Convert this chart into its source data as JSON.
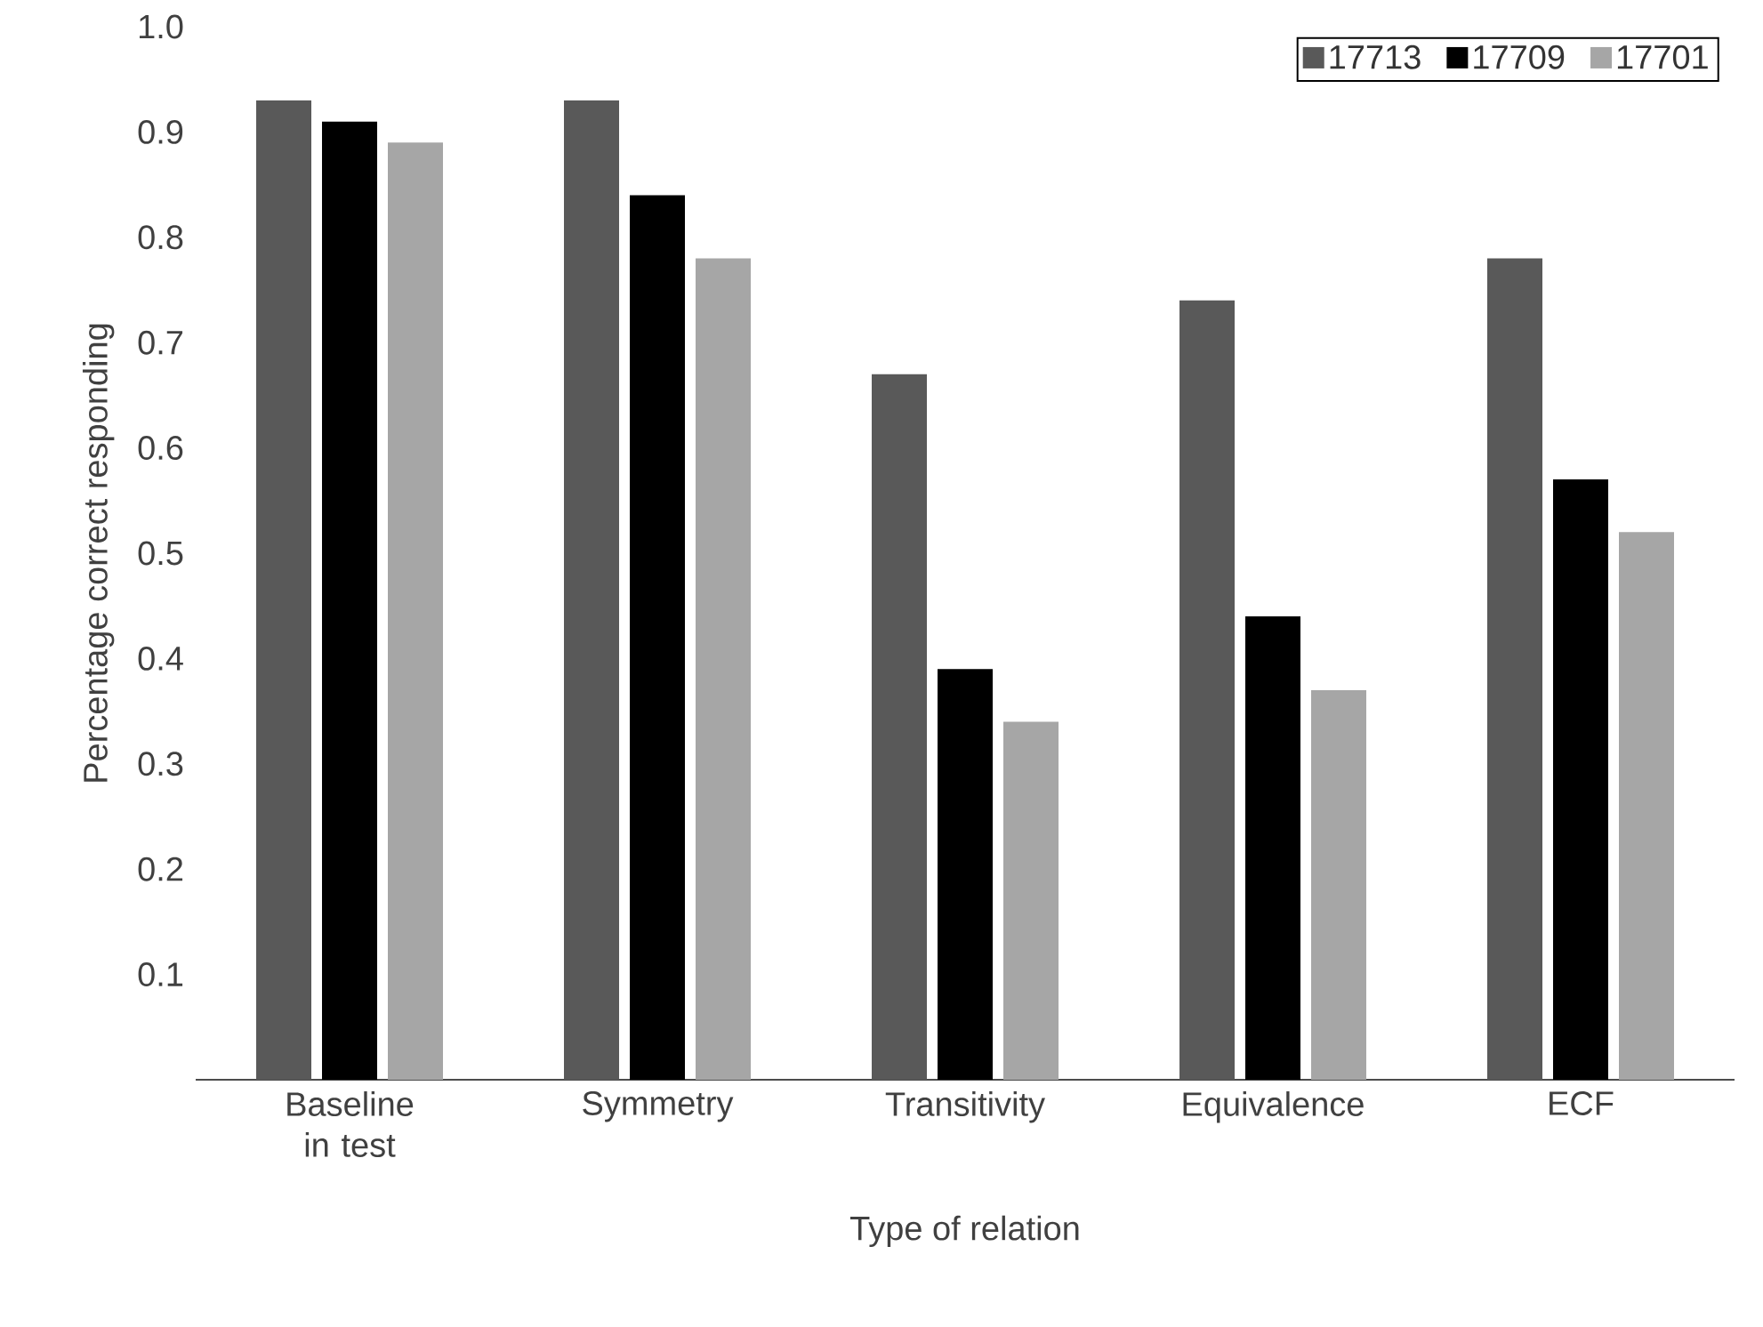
{
  "chart_data": {
    "type": "bar",
    "xlabel": "Type of relation",
    "ylabel": "Percentage correct responding",
    "categories": [
      "Baseline in test",
      "Symmetry",
      "Transitivity",
      "Equivalence",
      "ECF"
    ],
    "series": [
      {
        "name": "17713",
        "color": "#595959",
        "values": [
          0.93,
          0.93,
          0.67,
          0.74,
          0.78
        ]
      },
      {
        "name": "17709",
        "color": "#000000",
        "values": [
          0.91,
          0.84,
          0.39,
          0.44,
          0.57
        ]
      },
      {
        "name": "17701",
        "color": "#a6a6a6",
        "values": [
          0.89,
          0.78,
          0.34,
          0.37,
          0.52
        ]
      }
    ],
    "ylim": [
      0,
      1.0
    ],
    "yticks": [
      {
        "value": 0.1,
        "label": "0.1"
      },
      {
        "value": 0.2,
        "label": "0.2"
      },
      {
        "value": 0.3,
        "label": "0.3"
      },
      {
        "value": 0.4,
        "label": "0.4"
      },
      {
        "value": 0.5,
        "label": "0.5"
      },
      {
        "value": 0.6,
        "label": "0.6"
      },
      {
        "value": 0.7,
        "label": "0.7"
      },
      {
        "value": 0.8,
        "label": "0.8"
      },
      {
        "value": 0.9,
        "label": "0.9"
      },
      {
        "value": 1.0,
        "label": "1.0"
      }
    ],
    "grid": false,
    "legend": "top right"
  }
}
